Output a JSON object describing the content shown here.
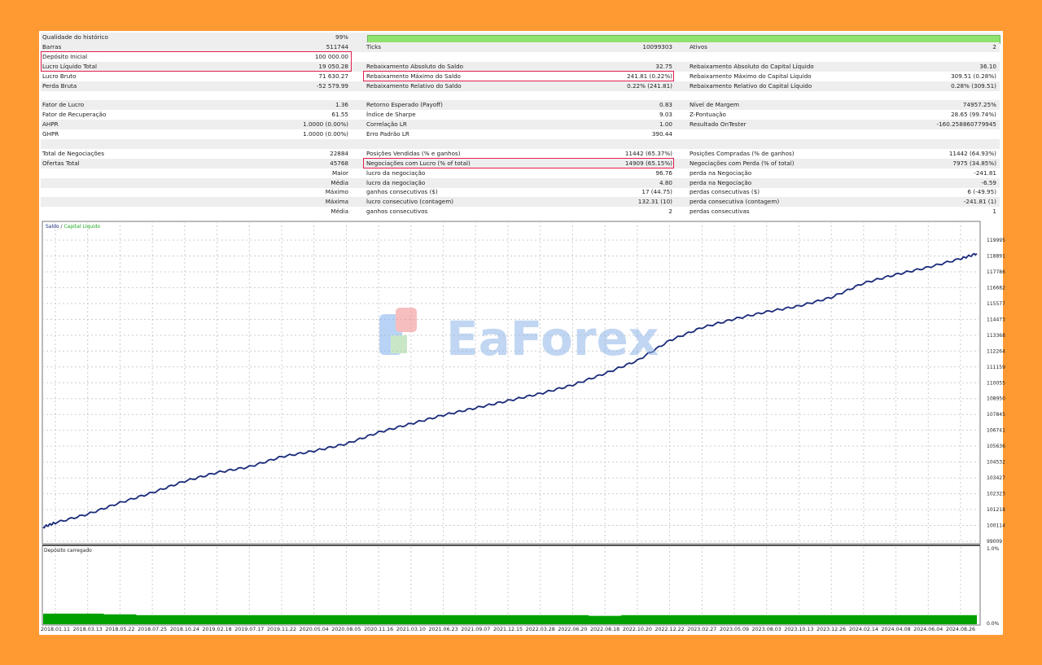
{
  "colors": {
    "background": "#FF9A33",
    "highlight": "#e2204c",
    "balance": "#1a2a7a",
    "equity": "#22aa22",
    "load": "#00a000",
    "quality_bar": "#8ee36f"
  },
  "stats": {
    "history_quality": {
      "label": "Qualidade do histórico",
      "value": "99%",
      "bar_percent": 99
    },
    "rows": [
      [],
      [
        "Barras",
        "511744",
        "Ticks",
        "10099303",
        "Ativos",
        "2"
      ],
      [
        "Depósito Inicial",
        "100 000.00",
        "",
        "",
        "",
        ""
      ],
      [
        "Lucro Líquido Total",
        "19 050.28",
        "Rebaixamento Absoluto do Saldo",
        "32.75",
        "Rebaixamento Absoluto do Capital Líquido",
        "36.10"
      ],
      [
        "Lucro Bruto",
        "71 630.27",
        "Rebaixamento Máximo do Saldo",
        "241.81 (0.22%)",
        "Rebaixamento Máximo do Capital Líquido",
        "309.51 (0.28%)"
      ],
      [
        "Perda Bruta",
        "-52 579.99",
        "Rebaixamento Relativo do Saldo",
        "0.22% (241.81)",
        "Rebaixamento Relativo do Capital Líquido",
        "0.28% (309.51)"
      ],
      [
        "",
        "",
        "",
        "",
        "",
        ""
      ],
      [
        "Fator de Lucro",
        "1.36",
        "Retorno Esperado (Payoff)",
        "0.83",
        "Nível de Margem",
        "74957.25%"
      ],
      [
        "Fator de Recuperação",
        "61.55",
        "Índice de Sharpe",
        "9.03",
        "Z-Pontuação",
        "28.65 (99.74%)"
      ],
      [
        "AHPR",
        "1.0000 (0.00%)",
        "Correlação LR",
        "1.00",
        "Resultado OnTester",
        "-160.258860779945"
      ],
      [
        "GHPR",
        "1.0000 (0.00%)",
        "Erro Padrão LR",
        "390.44",
        "",
        ""
      ],
      [
        "",
        "",
        "",
        "",
        "",
        ""
      ],
      [
        "Total de Negociações",
        "22884",
        "Posições Vendidas (% e ganhos)",
        "11442 (65.37%)",
        "Posições Compradas (% de ganhos)",
        "11442 (64.93%)"
      ],
      [
        "Ofertas Total",
        "45768",
        "Negociações com Lucro (% of total)",
        "14909 (65.15%)",
        "Negociações com Perda (% of total)",
        "7975 (34.85%)"
      ],
      [
        "",
        "Maior",
        "lucro da negociação",
        "96.76",
        "perda na Negociação",
        "-241.81"
      ],
      [
        "",
        "Média",
        "lucro da negociação",
        "4.80",
        "perda na Negociação",
        "-6.59"
      ],
      [
        "",
        "Máximo",
        "ganhos consecutivos ($)",
        "17 (44.75)",
        "perdas consecutivas ($)",
        "6 (-49.95)"
      ],
      [
        "",
        "Máxima",
        "lucro consecutivo (contagem)",
        "132.31 (10)",
        "perda consecutiva (contagem)",
        "-241.81 (1)"
      ],
      [
        "",
        "Média",
        "ganhos consecutivos",
        "2",
        "perdas consecutivas",
        "1"
      ]
    ]
  },
  "watermark": "EaForex",
  "chart_data": [
    {
      "type": "line",
      "legend": {
        "balance": "Saldo",
        "separator": " / ",
        "equity": "Capital Líquido",
        "placement": "top-left"
      },
      "y_ticks": [
        "99009",
        "100114",
        "101218",
        "102323",
        "103427",
        "104532",
        "105636",
        "106741",
        "107845",
        "108950",
        "110055",
        "111159",
        "112264",
        "113368",
        "114473",
        "115577",
        "116682",
        "117786",
        "118891",
        "119995"
      ],
      "ylim": [
        99009,
        119995
      ],
      "grid": true,
      "x_ticks": [
        "2018.01.11",
        "2018.03.13",
        "2018.05.22",
        "2018.07.25",
        "2018.10.24",
        "2019.02.18",
        "2019.07.17",
        "2019.11.22",
        "2020.05.04",
        "2020.08.05",
        "2020.11.16",
        "2021.03.10",
        "2021.06.23",
        "2021.09.07",
        "2021.12.15",
        "2022.03.28",
        "2022.06.20",
        "2022.08.18",
        "2022.10.20",
        "2022.12.22",
        "2023.02.27",
        "2023.05.09",
        "2023.08.03",
        "2023.10.13",
        "2023.12.26",
        "2024.02.14",
        "2024.04.08",
        "2024.06.04",
        "2024.08.26"
      ],
      "series": [
        {
          "name": "Saldo",
          "values": [
            100300,
            100900,
            101700,
            102400,
            103200,
            103800,
            104200,
            104900,
            105300,
            105800,
            106600,
            107200,
            107800,
            108300,
            108800,
            109300,
            109900,
            110700,
            111600,
            113000,
            113900,
            114500,
            115000,
            115400,
            116000,
            117000,
            117600,
            118100,
            118700
          ],
          "start": 100000,
          "end": 119050.28
        }
      ]
    },
    {
      "type": "area",
      "title": "Depósito carregado",
      "y_ticks": [
        "1.0%",
        "0.0%"
      ],
      "ylim": [
        0,
        1.0
      ],
      "values_percent": [
        0.14,
        0.14,
        0.13,
        0.12,
        0.12,
        0.12,
        0.12,
        0.12,
        0.12,
        0.12,
        0.12,
        0.12,
        0.12,
        0.12,
        0.12,
        0.12,
        0.12,
        0.11,
        0.12,
        0.12,
        0.12,
        0.12,
        0.12,
        0.12,
        0.12,
        0.12,
        0.12,
        0.12,
        0.12
      ]
    }
  ]
}
